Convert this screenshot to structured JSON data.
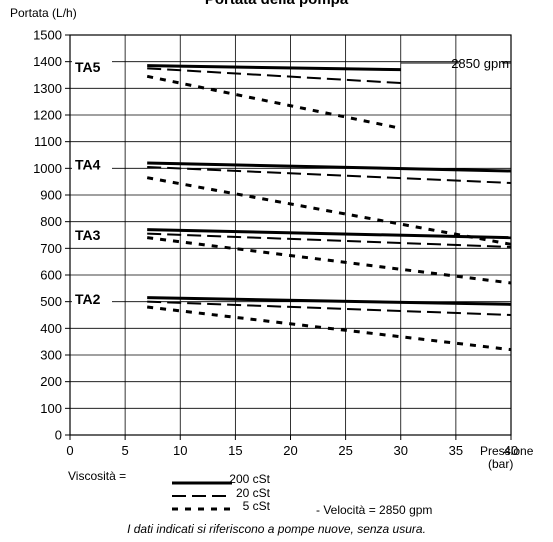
{
  "chart_data": {
    "type": "line",
    "title": "Portata della pompa",
    "ylabel": "Portata (L/h)",
    "xlabel": "Pressione (bar)",
    "xlim": [
      0,
      40
    ],
    "ylim": [
      0,
      1500
    ],
    "xticks": [
      0,
      5,
      10,
      15,
      20,
      25,
      30,
      35,
      40
    ],
    "yticks": [
      0,
      100,
      200,
      300,
      400,
      500,
      600,
      700,
      800,
      900,
      1000,
      1100,
      1200,
      1300,
      1400,
      1500
    ],
    "grid": true,
    "reference_line": {
      "y": 1395,
      "label": "2850 gpm"
    },
    "group_labels": [
      {
        "name": "TA5",
        "y": 1380
      },
      {
        "name": "TA4",
        "y": 1015
      },
      {
        "name": "TA3",
        "y": 750
      },
      {
        "name": "TA2",
        "y": 510
      }
    ],
    "series": [
      {
        "group": "TA5",
        "style": "solid",
        "x": [
          7,
          30
        ],
        "y": [
          1385,
          1370
        ]
      },
      {
        "group": "TA5",
        "style": "dashed",
        "x": [
          7,
          30
        ],
        "y": [
          1375,
          1320
        ]
      },
      {
        "group": "TA5",
        "style": "dotted",
        "x": [
          7,
          30
        ],
        "y": [
          1345,
          1150
        ]
      },
      {
        "group": "TA4",
        "style": "solid",
        "x": [
          7,
          40
        ],
        "y": [
          1020,
          990
        ]
      },
      {
        "group": "TA4",
        "style": "dashed",
        "x": [
          7,
          40
        ],
        "y": [
          1005,
          945
        ]
      },
      {
        "group": "TA4",
        "style": "dotted",
        "x": [
          7,
          40
        ],
        "y": [
          965,
          715
        ]
      },
      {
        "group": "TA3",
        "style": "solid",
        "x": [
          7,
          40
        ],
        "y": [
          770,
          740
        ]
      },
      {
        "group": "TA3",
        "style": "dashed",
        "x": [
          7,
          40
        ],
        "y": [
          755,
          705
        ]
      },
      {
        "group": "TA3",
        "style": "dotted",
        "x": [
          7,
          40
        ],
        "y": [
          740,
          570
        ]
      },
      {
        "group": "TA2",
        "style": "solid",
        "x": [
          7,
          40
        ],
        "y": [
          515,
          490
        ]
      },
      {
        "group": "TA2",
        "style": "dashed",
        "x": [
          7,
          40
        ],
        "y": [
          500,
          450
        ]
      },
      {
        "group": "TA2",
        "style": "dotted",
        "x": [
          7,
          40
        ],
        "y": [
          480,
          320
        ]
      }
    ],
    "legend": {
      "prefix": "Viscosità  =",
      "entries": [
        {
          "style": "solid",
          "label": "200 cSt"
        },
        {
          "style": "dashed",
          "label": "20 cSt"
        },
        {
          "style": "dotted",
          "label": "5 cSt"
        }
      ],
      "suffix": "- Velocità = 2850 gpm"
    },
    "note": "I dati indicati si riferiscono a pompe nuove, senza usura."
  }
}
